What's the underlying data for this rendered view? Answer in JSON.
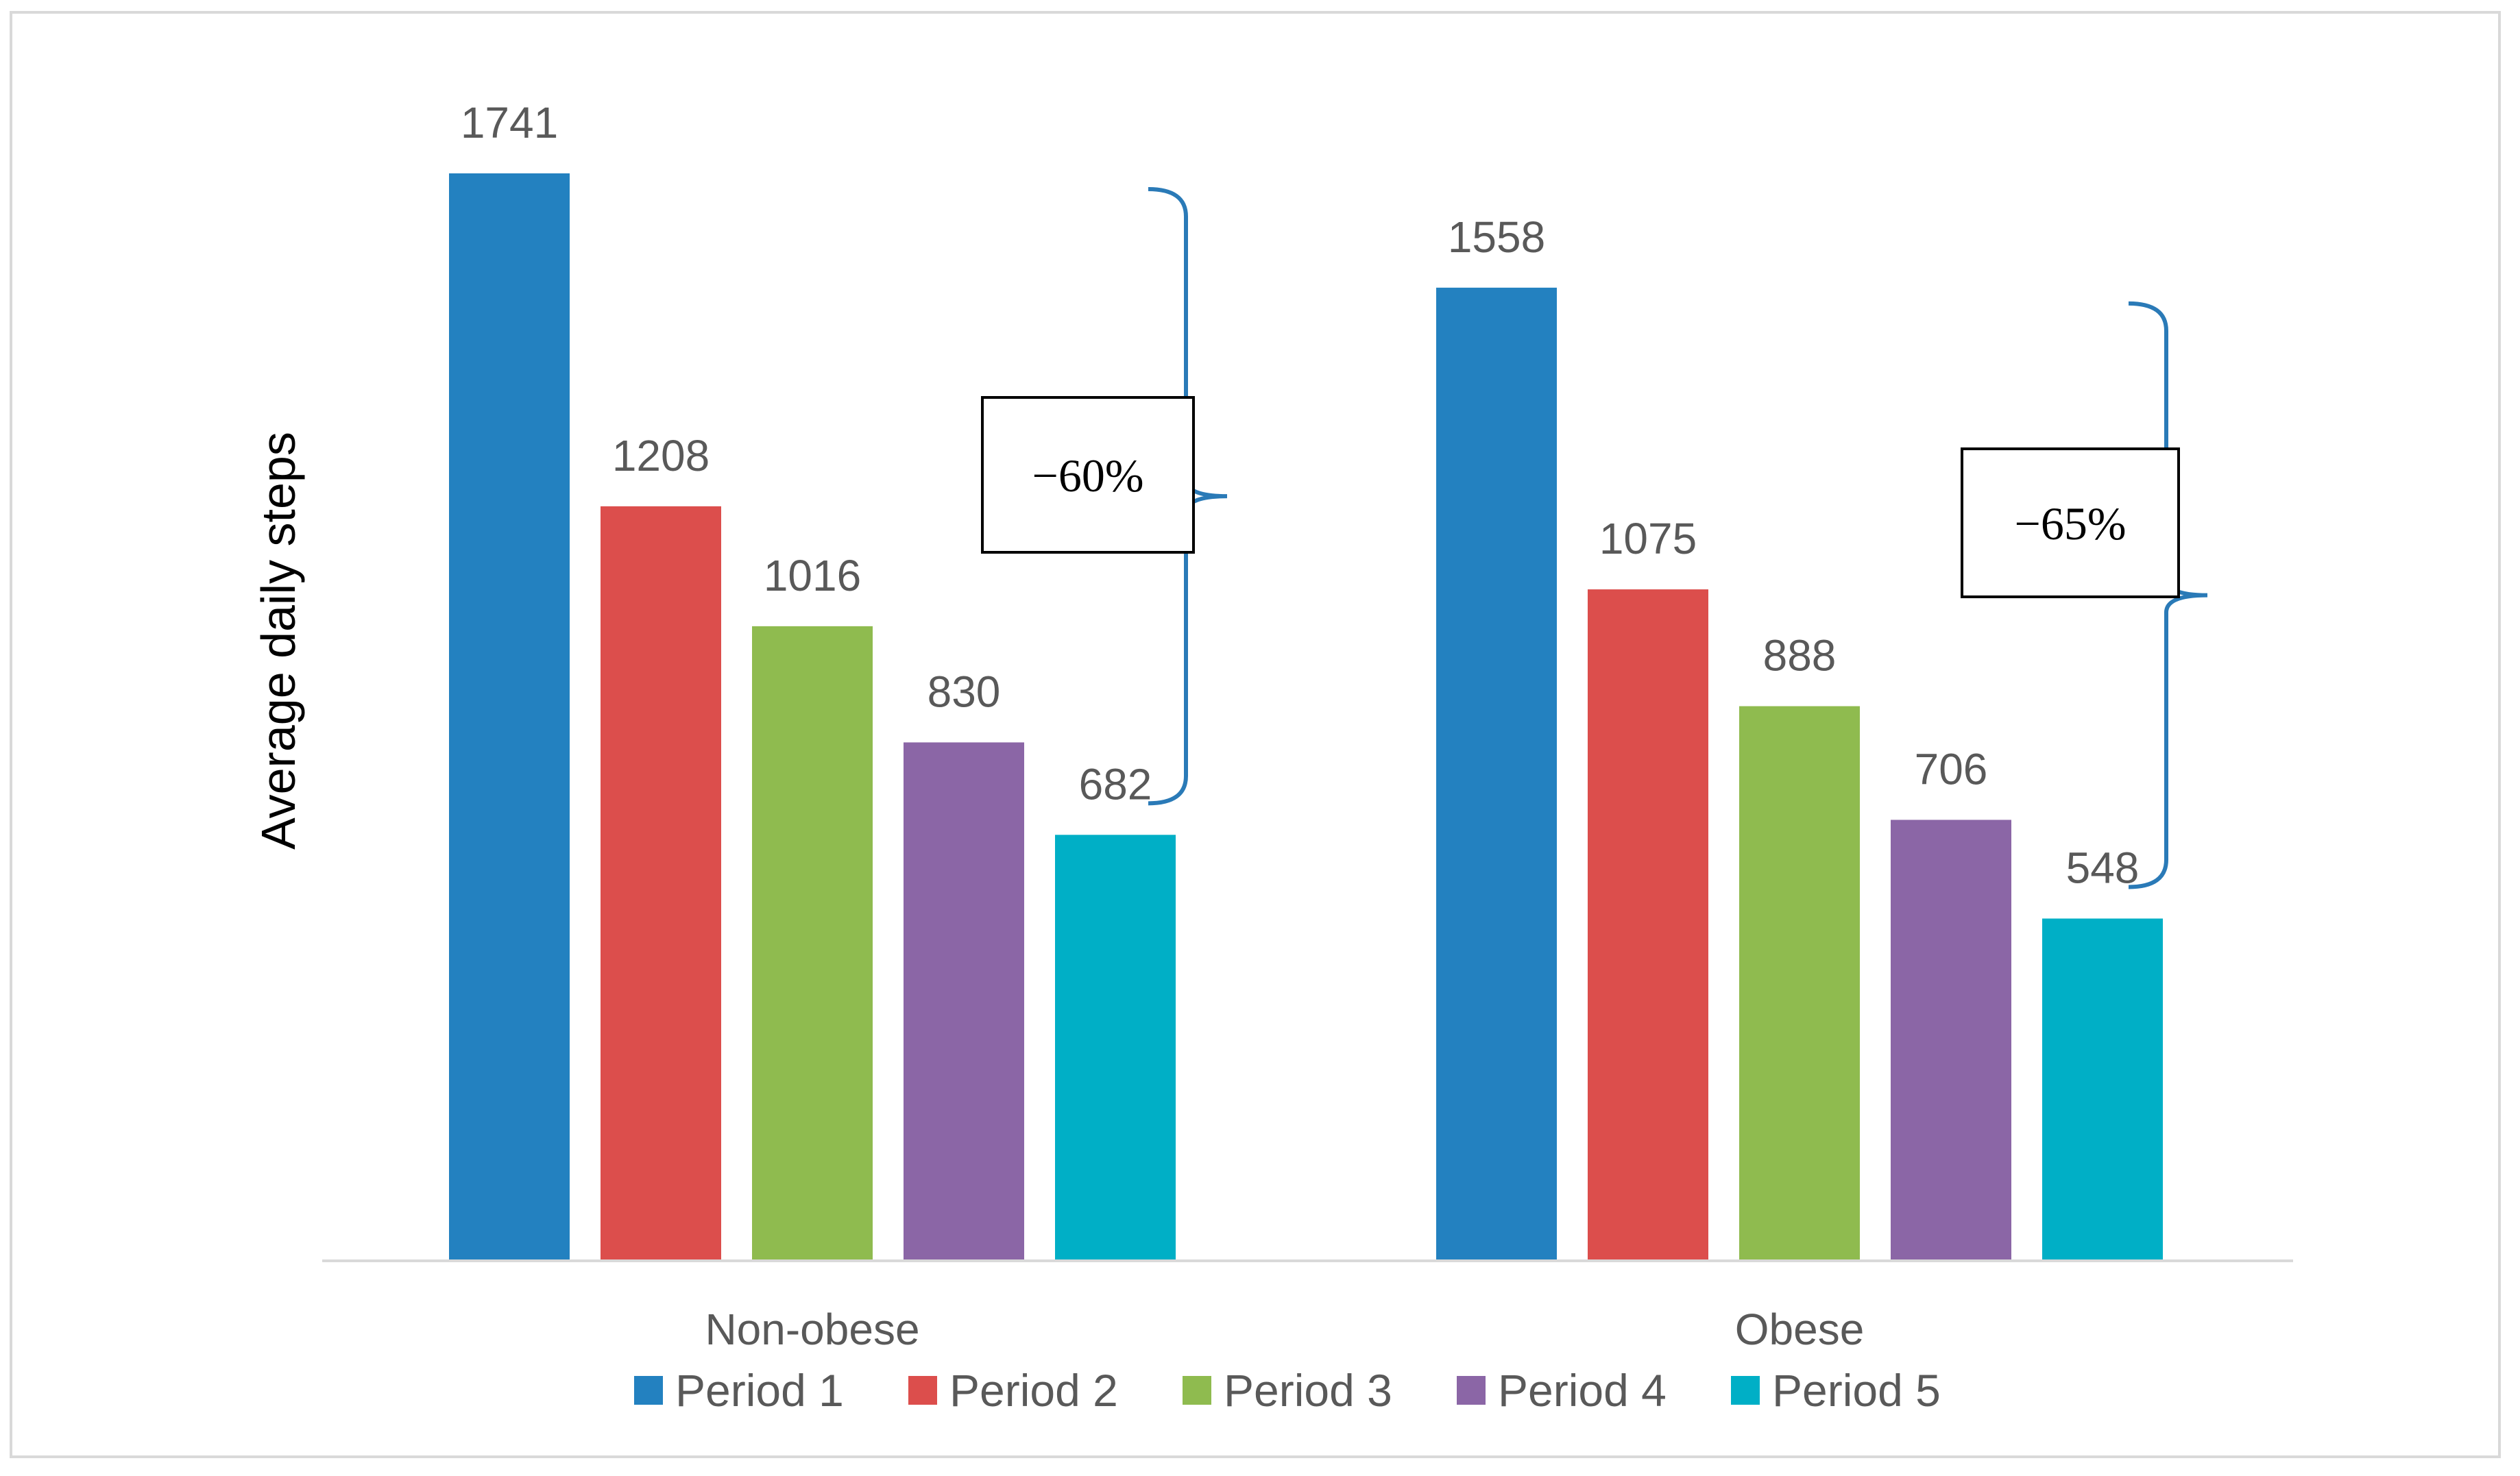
{
  "chart_data": {
    "type": "bar",
    "title": "",
    "xlabel": "",
    "ylabel": "Average daily steps",
    "ylim": [
      0,
      1800
    ],
    "grid": false,
    "legend_position": "bottom",
    "categories": [
      "Non-obese",
      "Obese"
    ],
    "series": [
      {
        "name": "Period 1",
        "color": "#2381c0",
        "values": [
          1741,
          1558
        ]
      },
      {
        "name": "Period 2",
        "color": "#dc4e4c",
        "values": [
          1208,
          1075
        ]
      },
      {
        "name": "Period 3",
        "color": "#8fbb4f",
        "values": [
          1016,
          888
        ]
      },
      {
        "name": "Period 4",
        "color": "#8b66a6",
        "values": [
          830,
          706
        ]
      },
      {
        "name": "Period 5",
        "color": "#00afc6",
        "values": [
          682,
          548
        ]
      }
    ],
    "annotations": [
      {
        "category": "Non-obese",
        "text": "−60%",
        "from_series": "Period 1",
        "to_series": "Period 5",
        "brace_color": "#2a7ab7"
      },
      {
        "category": "Obese",
        "text": "−65%",
        "from_series": "Period 1",
        "to_series": "Period 5",
        "brace_color": "#2a7ab7"
      }
    ]
  }
}
